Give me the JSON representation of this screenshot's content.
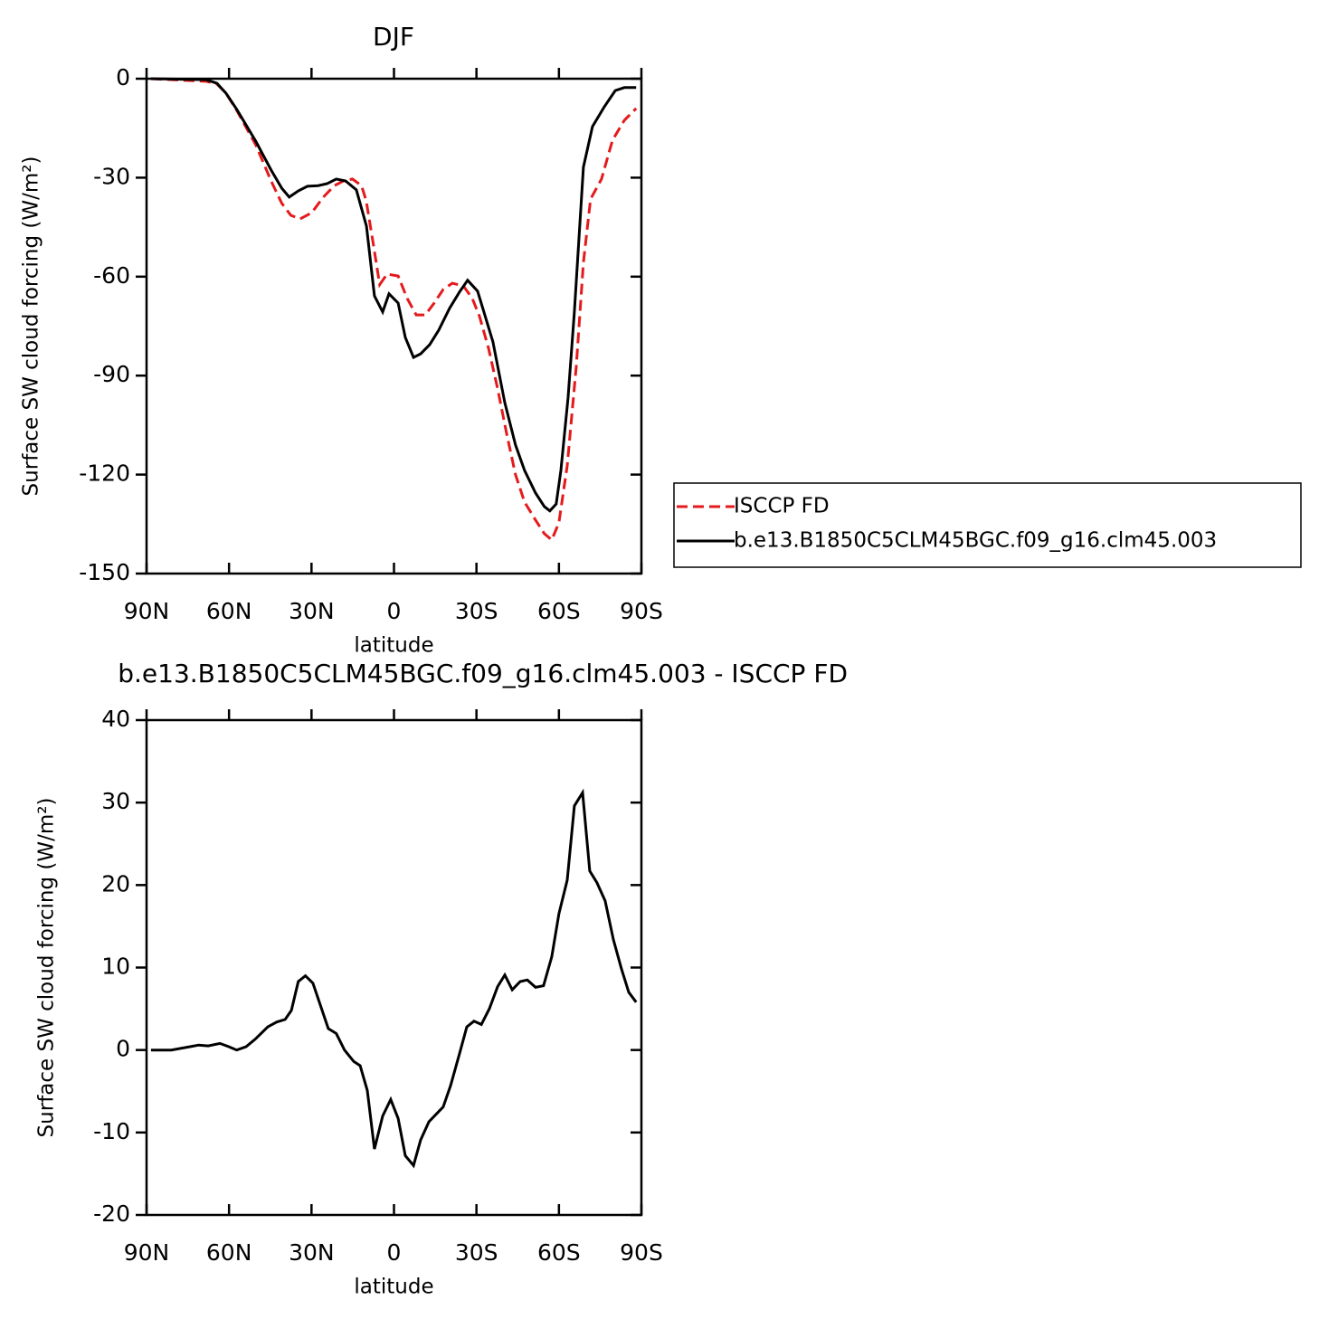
{
  "chart_data": [
    {
      "type": "line",
      "title": "DJF",
      "ylabel": "Surface SW cloud forcing (W/m²)",
      "xlabel": "latitude",
      "xlim": [
        90,
        -90
      ],
      "xticks": [
        {
          "value": 90,
          "label": "90N"
        },
        {
          "value": 60,
          "label": "60N"
        },
        {
          "value": 30,
          "label": "30N"
        },
        0,
        {
          "value": -30,
          "label": "30S"
        },
        {
          "value": -60,
          "label": "60S"
        },
        {
          "value": -90,
          "label": "90S"
        }
      ],
      "ylim": [
        -150,
        0
      ],
      "yticks": [
        0,
        -30,
        -60,
        -90,
        -120,
        -150
      ],
      "legend": "right",
      "series": [
        {
          "name": "ISCCP FD",
          "color": "#e41a1c",
          "dash": true,
          "x": [
            88.4,
            68.3,
            64.4,
            61.1,
            57.2,
            50.3,
            44.7,
            40.8,
            37.5,
            34.2,
            29.9,
            25.7,
            21.7,
            18.4,
            15.1,
            11.8,
            10.1,
            7.5,
            5.2,
            2.5,
            -1.5,
            -4.8,
            -8.1,
            -11.4,
            -14.6,
            -17.9,
            -21.2,
            -25.2,
            -28.5,
            -31.1,
            -34.4,
            -37.7,
            -41,
            -44.2,
            -47.5,
            -51.5,
            -54.7,
            -57.4,
            -60,
            -63,
            -66.3,
            -68.9,
            -71.5,
            -75.5,
            -79.5,
            -83.8,
            -88.1
          ],
          "values": [
            0,
            -0.8,
            -1.6,
            -4.4,
            -9.6,
            -20,
            -31,
            -37.8,
            -41.4,
            -42.5,
            -40.6,
            -35.9,
            -32.4,
            -31,
            -30.4,
            -32.4,
            -37,
            -50.2,
            -62.4,
            -59.2,
            -59.8,
            -66.6,
            -71.6,
            -71.6,
            -68,
            -63.9,
            -62,
            -62.8,
            -66.6,
            -72,
            -81.7,
            -94,
            -107.7,
            -120,
            -128.3,
            -133.8,
            -137.9,
            -139.8,
            -134.6,
            -117.3,
            -87.2,
            -55.7,
            -36.5,
            -30.4,
            -18.6,
            -12.6,
            -9
          ]
        },
        {
          "name": "b.e13.B1850C5CLM45BGC.f09_g16.clm45.003",
          "color": "#000000",
          "dash": false,
          "x": [
            88.4,
            68.3,
            64.4,
            61.1,
            57.2,
            50.3,
            44.7,
            40.8,
            38.1,
            34.8,
            31.5,
            27.6,
            24.3,
            21,
            17.6,
            13.7,
            10,
            7.1,
            4.1,
            1.8,
            -1.5,
            -4.1,
            -7.1,
            -9.7,
            -13,
            -16.3,
            -20.2,
            -23.8,
            -26.8,
            -30.4,
            -32.7,
            -36,
            -40.3,
            -44.2,
            -47.5,
            -51.5,
            -54.7,
            -56.7,
            -59,
            -60.7,
            -63.3,
            -65.6,
            -68.9,
            -72.2,
            -76.5,
            -80.5,
            -83.8,
            -88.1
          ],
          "values": [
            0,
            -0.3,
            -1.4,
            -4.4,
            -9.3,
            -18.9,
            -27.7,
            -33.2,
            -35.9,
            -34,
            -32.6,
            -32.4,
            -31.8,
            -30.4,
            -31,
            -33.7,
            -44.7,
            -65.8,
            -70.7,
            -65.2,
            -68,
            -78.4,
            -84.5,
            -83.4,
            -80.6,
            -76.2,
            -69.6,
            -64.7,
            -61.1,
            -64.4,
            -70.7,
            -79.8,
            -98.2,
            -111,
            -118.7,
            -125.6,
            -129.7,
            -131,
            -128.9,
            -118.7,
            -96.8,
            -70.7,
            -26.8,
            -14.5,
            -8.5,
            -3.6,
            -2.7,
            -2.7
          ]
        }
      ]
    },
    {
      "type": "line",
      "title": "b.e13.B1850C5CLM45BGC.f09_g16.clm45.003 - ISCCP FD",
      "ylabel": "Surface SW cloud forcing (W/m²)",
      "xlabel": "latitude",
      "xlim": [
        90,
        -90
      ],
      "xticks": [
        {
          "value": 90,
          "label": "90N"
        },
        {
          "value": 60,
          "label": "60N"
        },
        {
          "value": 30,
          "label": "30N"
        },
        0,
        {
          "value": -30,
          "label": "30S"
        },
        {
          "value": -60,
          "label": "60S"
        },
        {
          "value": -90,
          "label": "90S"
        }
      ],
      "ylim": [
        -20,
        40
      ],
      "yticks": [
        40,
        30,
        20,
        10,
        0,
        -10,
        -20
      ],
      "series": [
        {
          "color": "#000000",
          "dash": false,
          "x": [
            88.4,
            81,
            74.2,
            71,
            67.6,
            63.3,
            60.1,
            57.2,
            53.8,
            50.5,
            45.9,
            42.6,
            39.6,
            37.3,
            34.8,
            32.2,
            29.5,
            23.9,
            21,
            18,
            14.6,
            12.3,
            9.7,
            7.1,
            4.1,
            1.2,
            -1.5,
            -4.1,
            -7.1,
            -9.7,
            -12.7,
            -17.9,
            -20.6,
            -23.8,
            -26.5,
            -29.1,
            -31.8,
            -34.7,
            -37.7,
            -40.3,
            -43,
            -45.9,
            -48.5,
            -51.5,
            -54.4,
            -57.4,
            -60,
            -63,
            -65.6,
            -68.6,
            -71.2,
            -73.8,
            -76.8,
            -79.8,
            -82.7,
            -85.4,
            -88.1
          ],
          "values": [
            0,
            0,
            0.4,
            0.6,
            0.5,
            0.8,
            0.4,
            0,
            0.4,
            1.3,
            2.8,
            3.4,
            3.7,
            4.8,
            8.3,
            9,
            8.1,
            2.6,
            2,
            0,
            -1.4,
            -1.9,
            -4.9,
            -12,
            -8,
            -6,
            -8.3,
            -12.8,
            -14,
            -10.9,
            -8.7,
            -6.9,
            -4.3,
            -0.5,
            2.8,
            3.5,
            3.1,
            5,
            7.7,
            9.1,
            7.3,
            8.3,
            8.5,
            7.6,
            7.8,
            11.3,
            16.5,
            20.6,
            29.6,
            31.2,
            21.7,
            20.3,
            18.1,
            13.4,
            9.9,
            7,
            5.8
          ]
        }
      ]
    }
  ]
}
